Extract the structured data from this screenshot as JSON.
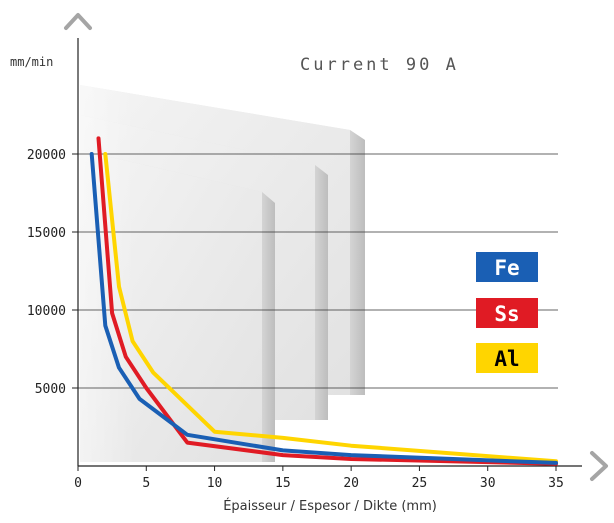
{
  "chart_data": {
    "type": "line",
    "subtitle": "Current 90 A",
    "ylabel": "mm/min",
    "xlabel": "Épaisseur / Espesor / Dikte (mm)",
    "xlim": [
      0,
      35
    ],
    "ylim": [
      0,
      20000
    ],
    "x_ticks": [
      "0",
      "5",
      "10",
      "15",
      "20",
      "25",
      "30",
      "35"
    ],
    "y_ticks": [
      "5000",
      "10000",
      "15000",
      "20000"
    ],
    "grid": "horizontal",
    "legend_position": "right",
    "series": [
      {
        "name": "Fe",
        "color": "#1a5fb4",
        "text_color": "#ffffff",
        "x": [
          1.0,
          2.0,
          3.0,
          4.5,
          8.0,
          15.0,
          20.0,
          35.0
        ],
        "y": [
          20000,
          9000,
          6300,
          4300,
          2000,
          1000,
          700,
          200
        ]
      },
      {
        "name": "Ss",
        "color": "#e01b24",
        "text_color": "#ffffff",
        "x": [
          1.5,
          2.5,
          3.5,
          5.0,
          8.0,
          15.0,
          20.0,
          35.0
        ],
        "y": [
          21000,
          9800,
          7000,
          5000,
          1500,
          700,
          450,
          150
        ]
      },
      {
        "name": "Al",
        "color": "#ffd500",
        "text_color": "#000000",
        "x": [
          2.0,
          3.0,
          4.0,
          5.5,
          10.0,
          15.0,
          20.0,
          35.0
        ],
        "y": [
          20000,
          11500,
          8000,
          6000,
          2200,
          1800,
          1300,
          300
        ]
      }
    ]
  }
}
